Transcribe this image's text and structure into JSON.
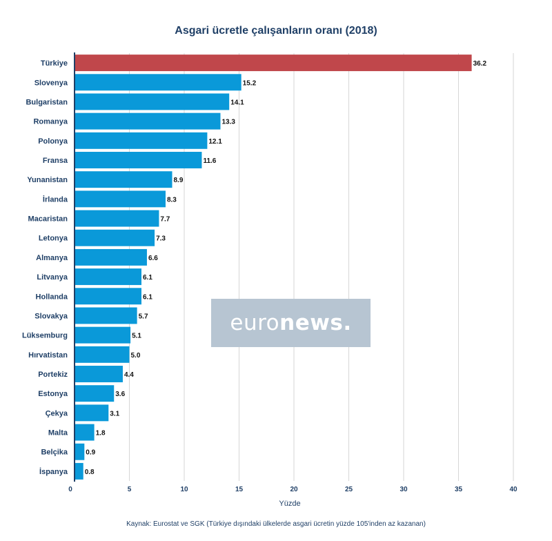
{
  "chart_data": {
    "type": "bar",
    "orientation": "horizontal",
    "title": "Asgari ücretle çalışanların oranı (2018)",
    "xlabel": "Yüzde",
    "ylabel": "",
    "xlim": [
      0,
      40
    ],
    "ticks": [
      "0",
      "5",
      "10",
      "15",
      "20",
      "25",
      "30",
      "35",
      "40"
    ],
    "categories": [
      "Türkiye",
      "Slovenya",
      "Bulgaristan",
      "Romanya",
      "Polonya",
      "Fransa",
      "Yunanistan",
      "İrlanda",
      "Macaristan",
      "Letonya",
      "Almanya",
      "Litvanya",
      "Hollanda",
      "Slovakya",
      "Lüksemburg",
      "Hırvatistan",
      "Portekiz",
      "Estonya",
      "Çekya",
      "Malta",
      "Belçika",
      "İspanya"
    ],
    "values": [
      36.2,
      15.2,
      14.1,
      13.3,
      12.1,
      11.6,
      8.9,
      8.3,
      7.7,
      7.3,
      6.6,
      6.1,
      6.1,
      5.7,
      5.1,
      5.0,
      4.4,
      3.6,
      3.1,
      1.8,
      0.9,
      0.8
    ],
    "value_labels": [
      "36.2",
      "15.2",
      "14.1",
      "13.3",
      "12.1",
      "11.6",
      "8.9",
      "8.3",
      "7.7",
      "7.3",
      "6.6",
      "6.1",
      "6.1",
      "5.7",
      "5.1",
      "5.0",
      "4.4",
      "3.6",
      "3.1",
      "1.8",
      "0.9",
      "0.8"
    ],
    "highlight_index": 0,
    "colors": {
      "bar": "#0a99d9",
      "highlight": "#c0474b",
      "axis": "#1f3f66",
      "grid": "#d6d6d6"
    },
    "grid": true,
    "legend": "none"
  },
  "watermark": {
    "light": "euro",
    "bold": "news."
  },
  "source": "Kaynak: Eurostat ve SGK (Türkiye dışındaki ülkelerde asgari ücretin yüzde 105'inden az kazanan)"
}
